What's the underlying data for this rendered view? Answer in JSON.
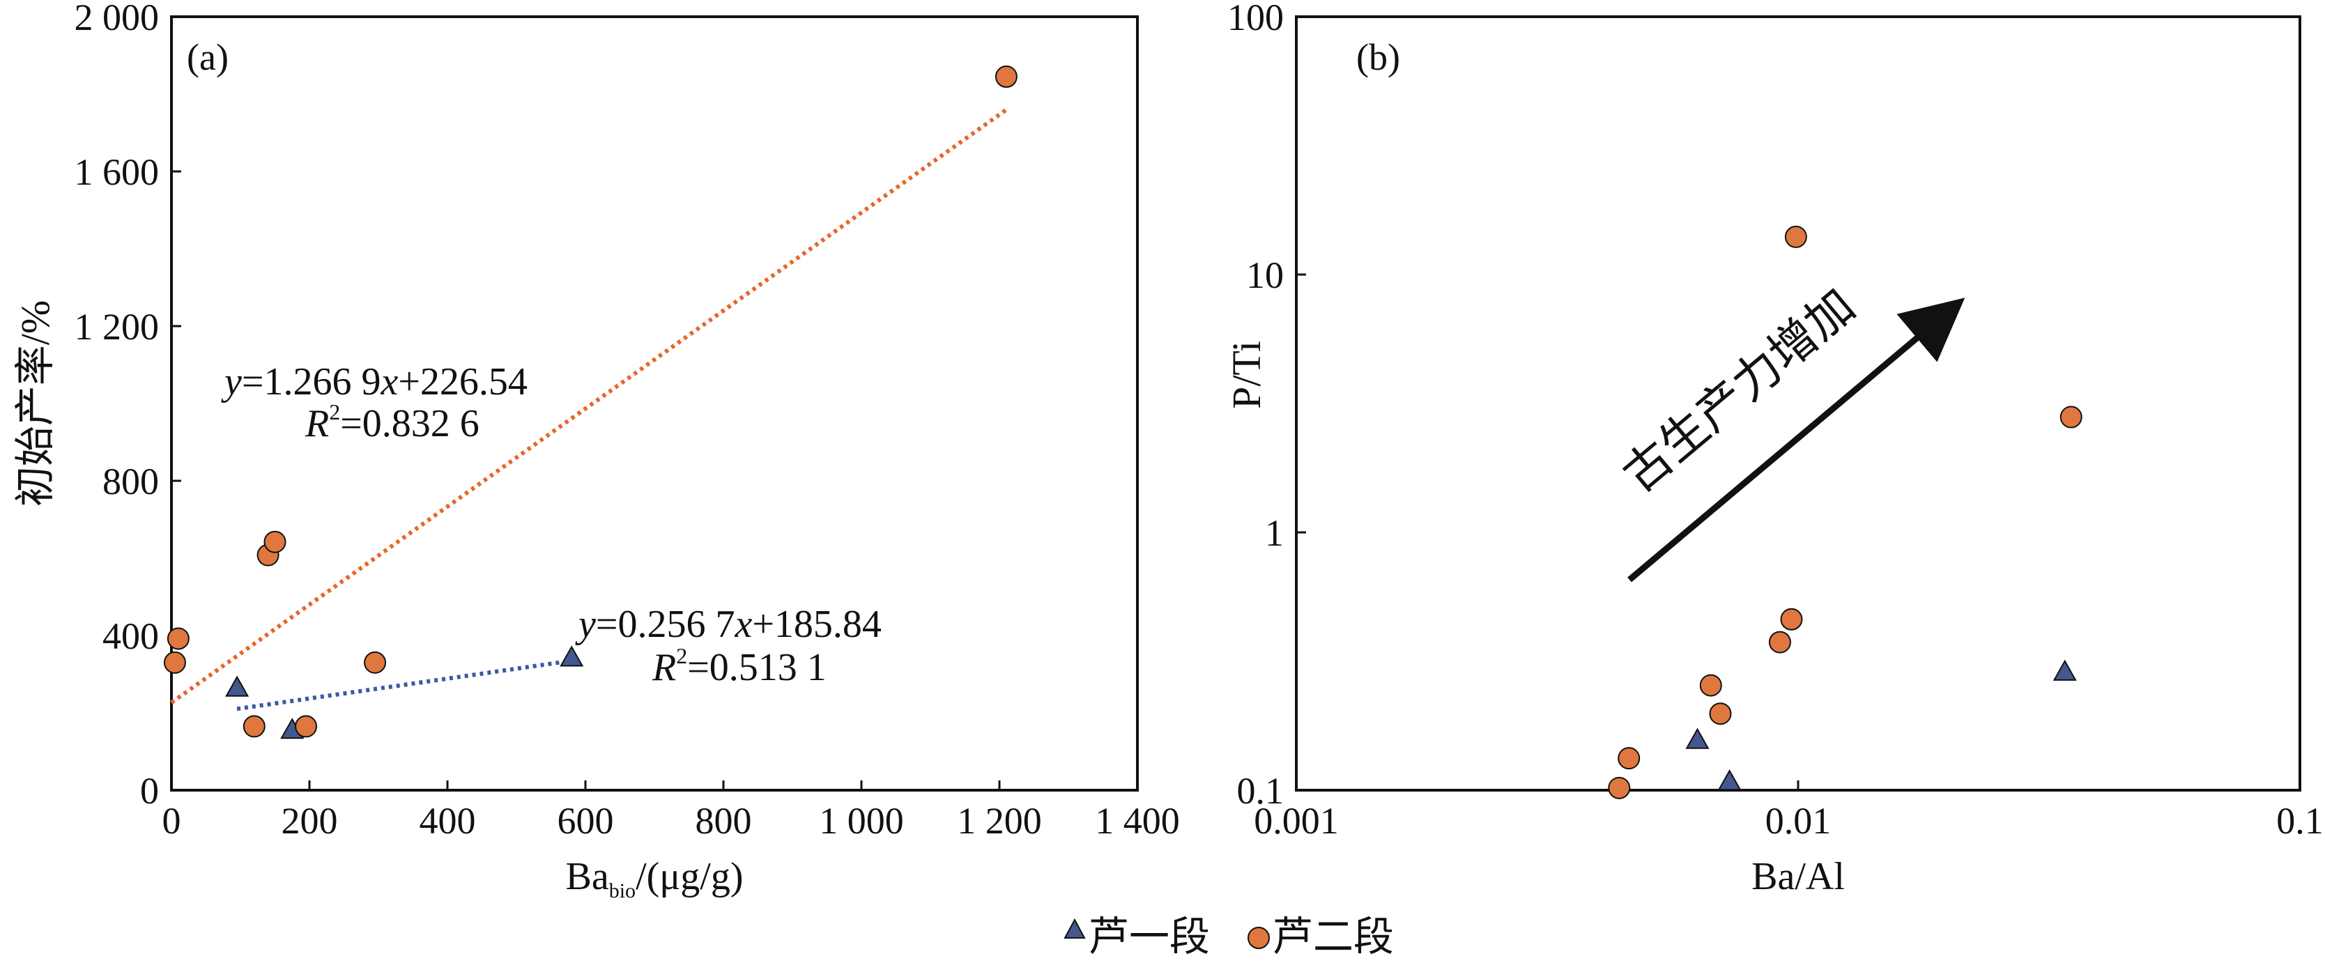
{
  "colors": {
    "series1": "#44588f",
    "series2": "#e0773f",
    "fit1": "#3b59a8",
    "fit2": "#e8662a",
    "axis": "#111111"
  },
  "legend": {
    "series1_label": "芦一段",
    "series2_label": "芦二段"
  },
  "chart_data": [
    {
      "type": "scatter",
      "panel_label": "(a)",
      "xlabel_main": "Ba",
      "xlabel_sub": "bio",
      "xlabel_unit": "/(μg/g)",
      "ylabel": "初始产率/%",
      "xlim": [
        0,
        1400
      ],
      "ylim": [
        0,
        2000
      ],
      "xticks": [
        0,
        200,
        400,
        600,
        800,
        1000,
        1200,
        1400
      ],
      "xtick_labels": [
        "0",
        "200",
        "400",
        "600",
        "800",
        "1 000",
        "1 200",
        "1 400"
      ],
      "yticks": [
        0,
        400,
        800,
        1200,
        1600,
        2000
      ],
      "ytick_labels": [
        "0",
        "400",
        "800",
        "1 200",
        "1 600",
        "2 000"
      ],
      "grid": false,
      "series": [
        {
          "name": "芦一段",
          "marker": "triangle",
          "x": [
            95,
            175,
            580
          ],
          "y": [
            262,
            153,
            340
          ]
        },
        {
          "name": "芦二段",
          "marker": "circle",
          "x": [
            5,
            10,
            120,
            140,
            150,
            195,
            295,
            1210
          ],
          "y": [
            330,
            392,
            165,
            608,
            642,
            165,
            330,
            1845
          ]
        }
      ],
      "fits": [
        {
          "series": "芦二段",
          "slope": 1.2669,
          "intercept": 226.54,
          "x_range": [
            0,
            1210
          ],
          "eq_label": "y=1.266 9x+226.54",
          "r2_label": "R2=0.832 6",
          "eq_parts": [
            "y",
            "=1.266 9",
            "x",
            "+226.54"
          ],
          "r2_parts": [
            "R",
            "2",
            "=0.832 6"
          ]
        },
        {
          "series": "芦一段",
          "slope": 0.2567,
          "intercept": 185.84,
          "x_range": [
            95,
            580
          ],
          "eq_label": "y=0.256 7x+185.84",
          "r2_label": "R2=0.513 1",
          "eq_parts": [
            "y",
            "=0.256 7",
            "x",
            "+185.84"
          ],
          "r2_parts": [
            "R",
            "2",
            "=0.513 1"
          ]
        }
      ]
    },
    {
      "type": "scatter",
      "panel_label": "(b)",
      "xlabel": "Ba/Al",
      "ylabel": "P/Ti",
      "xscale": "log",
      "yscale": "log",
      "xlim": [
        0.001,
        0.1
      ],
      "ylim": [
        0.1,
        100
      ],
      "xticks": [
        0.001,
        0.01,
        0.1
      ],
      "xtick_labels": [
        "0.001",
        "0.01",
        "0.1"
      ],
      "yticks": [
        0.1,
        1,
        10,
        100
      ],
      "ytick_labels": [
        "0.1",
        "1",
        "10",
        "100"
      ],
      "grid": false,
      "annotation": "古生产力增加",
      "series": [
        {
          "name": "芦一段",
          "marker": "triangle",
          "x": [
            0.0063,
            0.0073,
            0.034
          ],
          "y": [
            0.155,
            0.107,
            0.285
          ]
        },
        {
          "name": "芦二段",
          "marker": "circle",
          "x": [
            0.0044,
            0.0046,
            0.0067,
            0.007,
            0.0092,
            0.0097,
            0.0099,
            0.035
          ],
          "y": [
            0.102,
            0.133,
            0.255,
            0.198,
            0.375,
            0.46,
            14,
            2.8
          ]
        }
      ]
    }
  ]
}
